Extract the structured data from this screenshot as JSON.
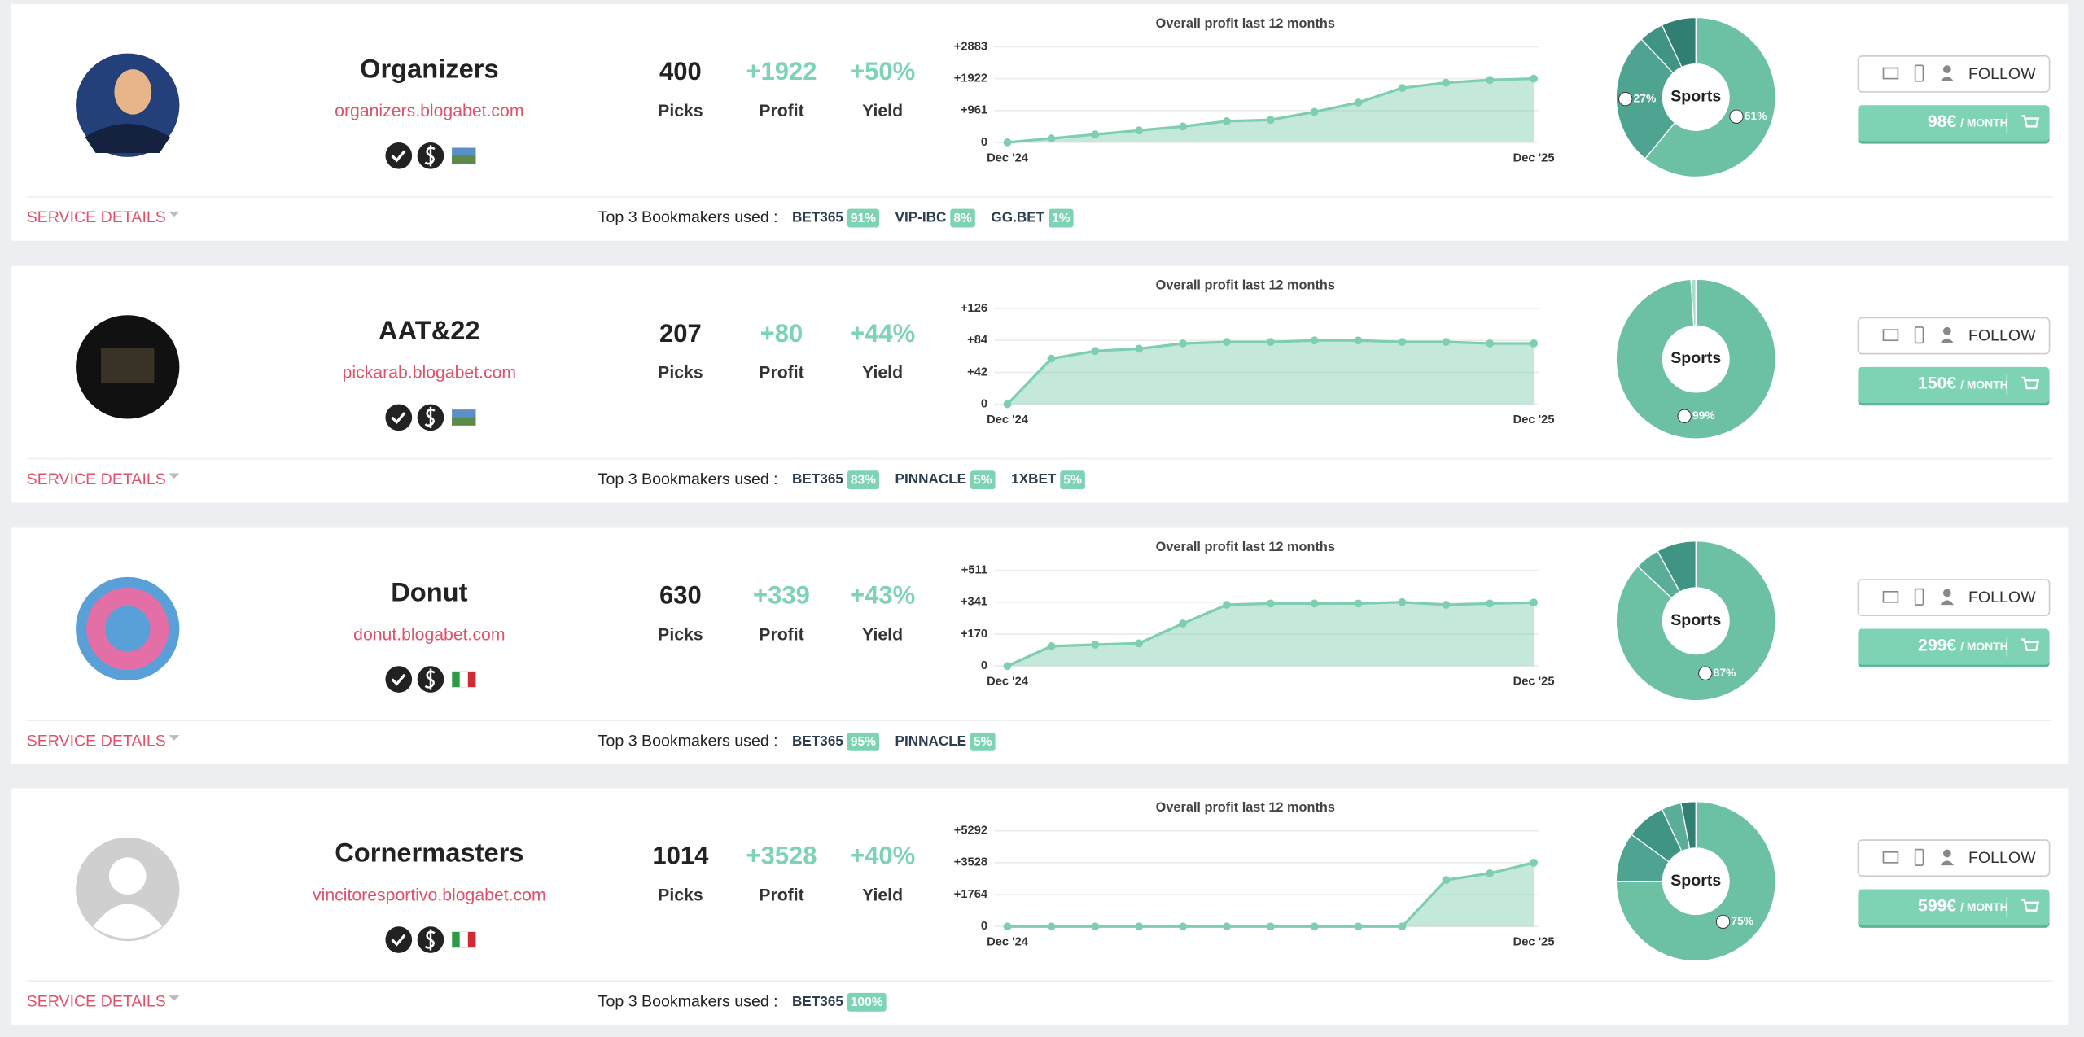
{
  "labels": {
    "picks": "Picks",
    "profit": "Profit",
    "yield": "Yield",
    "service_details": "SERVICE DETAILS",
    "bookmakers_title": "Top 3 Bookmakers used :",
    "follow": "FOLLOW"
  },
  "tipsters": [
    {
      "name": "Organizers",
      "url": "organizers.blogabet.com",
      "picks": "400",
      "profit": "+1922",
      "yield": "+50%",
      "chart": {
        "type": "area",
        "title": "Overall profit last 12 months",
        "categories": [
          "Dec '24",
          null,
          null,
          null,
          null,
          null,
          null,
          null,
          null,
          null,
          null,
          null,
          "Dec '25"
        ],
        "values": [
          0,
          120,
          240,
          360,
          480,
          640,
          680,
          920,
          1200,
          1640,
          1800,
          1880,
          1922
        ],
        "color": "#7dcfb0",
        "ylim": [
          0,
          2883
        ],
        "yticks": [
          0,
          {
            "value": 961,
            "label": "+961"
          },
          {
            "value": 1922,
            "label": "+1922"
          },
          {
            "value": 2883,
            "label": "+2883"
          }
        ],
        "grid": true
      },
      "pie": {
        "type": "donut",
        "label": "Sports",
        "values": [
          61,
          27,
          5,
          7
        ],
        "value_labels": [
          "61%",
          "27%",
          null,
          null
        ],
        "colors": [
          "#6cc0a3",
          "#4fa391",
          "#3f9484",
          "#317f72"
        ]
      },
      "price": "98€",
      "period": "/ MONTH",
      "bookmakers": [
        {
          "name": "BET365",
          "share": "91%"
        },
        {
          "name": "VIP-IBC",
          "share": "8%"
        },
        {
          "name": "GG.BET",
          "share": "1%"
        }
      ]
    },
    {
      "name": "AAT&22",
      "url": "pickarab.blogabet.com",
      "picks": "207",
      "profit": "+80",
      "yield": "+44%",
      "chart": {
        "type": "area",
        "title": "Overall profit last 12 months",
        "categories": [
          "Dec '24",
          null,
          null,
          null,
          null,
          null,
          null,
          null,
          null,
          null,
          null,
          null,
          "Dec '25"
        ],
        "values": [
          0,
          60,
          70,
          73,
          80,
          82,
          82,
          84,
          84,
          82,
          82,
          80,
          80
        ],
        "color": "#7dcfb0",
        "ylim": [
          0,
          126
        ],
        "yticks": [
          0,
          {
            "value": 42,
            "label": "+42"
          },
          {
            "value": 84,
            "label": "+84"
          },
          {
            "value": 126,
            "label": "+126"
          }
        ],
        "grid": true
      },
      "pie": {
        "type": "donut",
        "label": "Sports",
        "values": [
          99,
          1
        ],
        "value_labels": [
          "99%",
          null
        ],
        "colors": [
          "#6cc0a3",
          "#a9dcc9"
        ]
      },
      "price": "150€",
      "period": "/ MONTH",
      "bookmakers": [
        {
          "name": "BET365",
          "share": "83%"
        },
        {
          "name": "PINNACLE",
          "share": "5%"
        },
        {
          "name": "1XBET",
          "share": "5%"
        }
      ]
    },
    {
      "name": "Donut",
      "url": "donut.blogabet.com",
      "picks": "630",
      "profit": "+339",
      "yield": "+43%",
      "chart": {
        "type": "area",
        "title": "Overall profit last 12 months",
        "categories": [
          "Dec '24",
          null,
          null,
          null,
          null,
          null,
          null,
          null,
          null,
          null,
          null,
          null,
          "Dec '25"
        ],
        "values": [
          0,
          106,
          114,
          121,
          227,
          327,
          334,
          334,
          334,
          341,
          327,
          334,
          339
        ],
        "color": "#7dcfb0",
        "ylim": [
          0,
          511
        ],
        "yticks": [
          0,
          {
            "value": 170,
            "label": "+170"
          },
          {
            "value": 341,
            "label": "+341"
          },
          {
            "value": 511,
            "label": "+511"
          }
        ],
        "grid": true
      },
      "pie": {
        "type": "donut",
        "label": "Sports",
        "values": [
          87,
          5,
          8
        ],
        "value_labels": [
          "87%",
          null,
          null
        ],
        "colors": [
          "#6cc0a3",
          "#5aae98",
          "#3f9484"
        ]
      },
      "price": "299€",
      "period": "/ MONTH",
      "bookmakers": [
        {
          "name": "BET365",
          "share": "95%"
        },
        {
          "name": "PINNACLE",
          "share": "5%"
        }
      ]
    },
    {
      "name": "Cornermasters",
      "url": "vincitoresportivo.blogabet.com",
      "picks": "1014",
      "profit": "+3528",
      "yield": "+40%",
      "chart": {
        "type": "area",
        "title": "Overall profit last 12 months",
        "categories": [
          "Dec '24",
          null,
          null,
          null,
          null,
          null,
          null,
          null,
          null,
          null,
          null,
          null,
          "Dec '25"
        ],
        "values": [
          0,
          0,
          0,
          0,
          0,
          0,
          0,
          0,
          0,
          0,
          2570,
          2940,
          3528
        ],
        "color": "#7dcfb0",
        "ylim": [
          0,
          5292
        ],
        "yticks": [
          0,
          {
            "value": 1764,
            "label": "+1764"
          },
          {
            "value": 3528,
            "label": "+3528"
          },
          {
            "value": 5292,
            "label": "+5292"
          }
        ],
        "grid": true
      },
      "pie": {
        "type": "donut",
        "label": "Sports",
        "values": [
          75,
          10,
          8,
          4,
          3
        ],
        "value_labels": [
          "75%",
          null,
          null,
          null,
          null
        ],
        "colors": [
          "#6cc0a3",
          "#4fa391",
          "#3f9484",
          "#5aae98",
          "#317f72"
        ]
      },
      "price": "599€",
      "period": "/ MONTH",
      "bookmakers": [
        {
          "name": "BET365",
          "share": "100%"
        }
      ]
    }
  ]
}
